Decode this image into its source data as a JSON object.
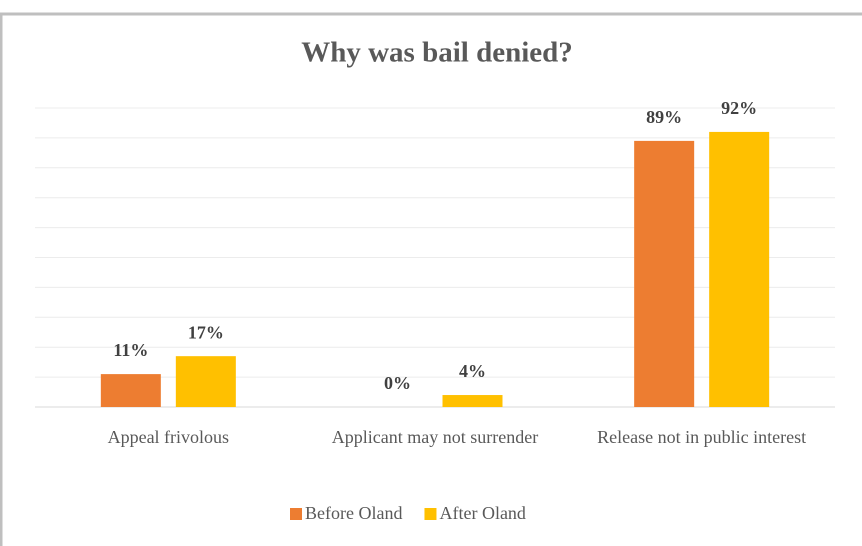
{
  "chart_data": {
    "type": "bar",
    "title": "Why was bail denied?",
    "categories": [
      "Appeal frivolous",
      "Applicant may not surrender",
      "Release not in public interest"
    ],
    "series": [
      {
        "name": "Before Oland",
        "color": "#ed7d31",
        "values": [
          11,
          0,
          89
        ],
        "value_labels": [
          "11%",
          "0%",
          "89%"
        ]
      },
      {
        "name": "After Oland",
        "color": "#ffc000",
        "values": [
          17,
          4,
          92
        ],
        "value_labels": [
          "17%",
          "4%",
          "92%"
        ]
      }
    ],
    "ylim": [
      0,
      100
    ],
    "yticks": [
      0,
      10,
      20,
      30,
      40,
      50,
      60,
      70,
      80,
      90,
      100
    ],
    "ytick_labels": false,
    "grid": true,
    "legend": "bottom"
  }
}
